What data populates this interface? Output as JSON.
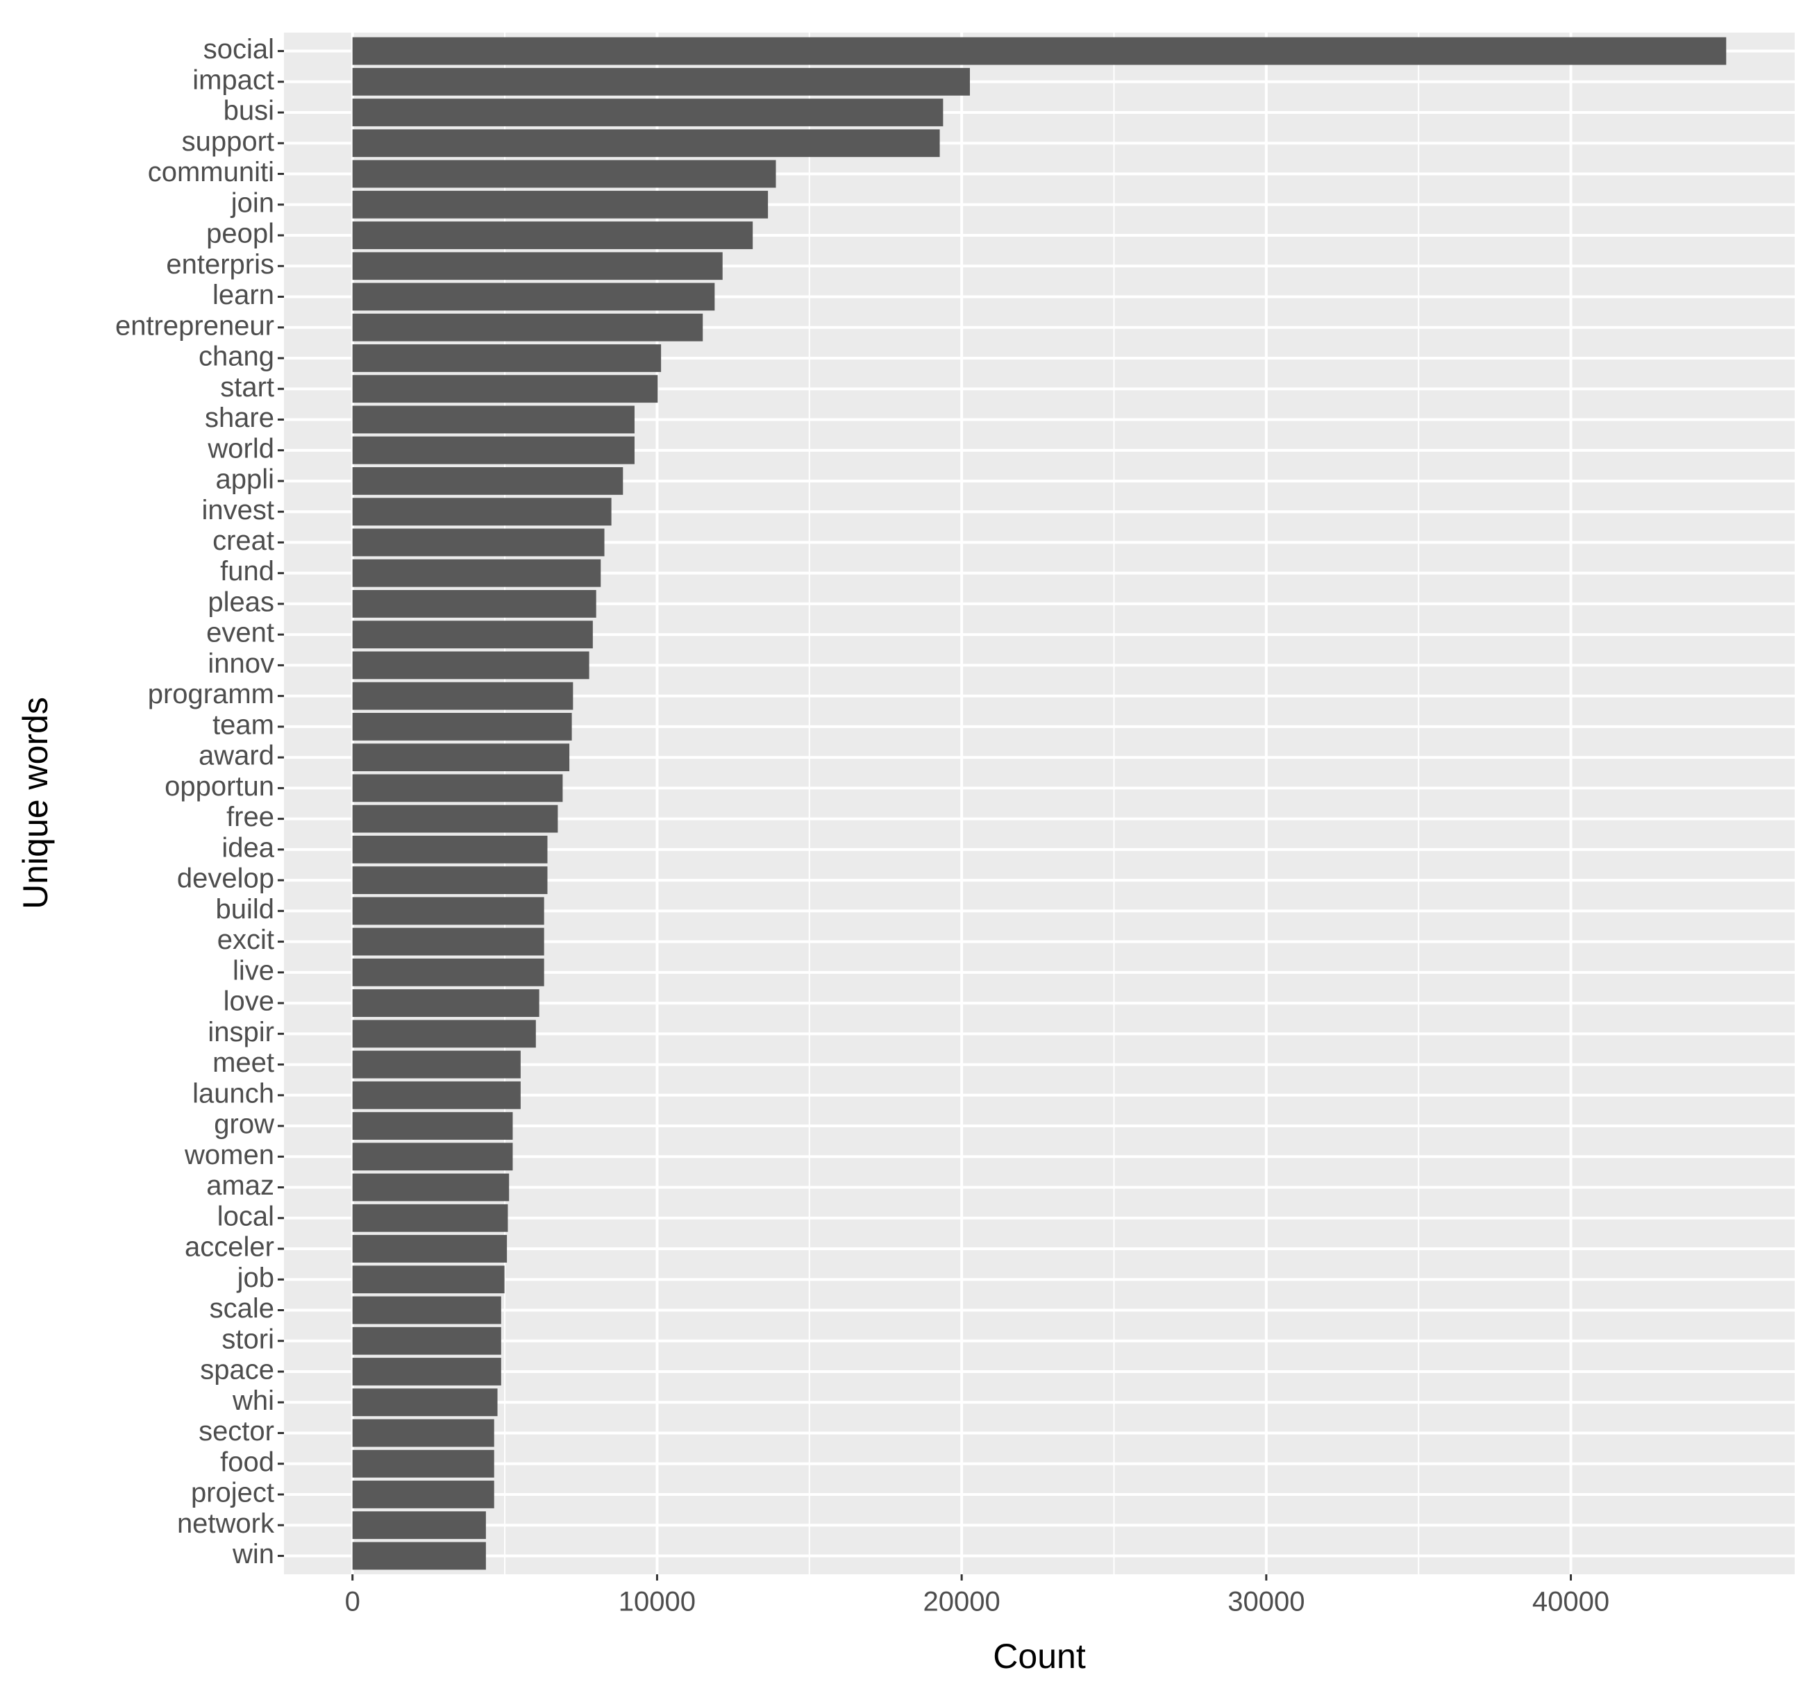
{
  "chart_data": {
    "type": "bar",
    "orientation": "horizontal",
    "x_label": "Count",
    "y_label": "Unique words",
    "categories": [
      "social",
      "impact",
      "busi",
      "support",
      "communiti",
      "join",
      "peopl",
      "enterpris",
      "learn",
      "entrepreneur",
      "chang",
      "start",
      "share",
      "world",
      "appli",
      "invest",
      "creat",
      "fund",
      "pleas",
      "event",
      "innov",
      "programm",
      "team",
      "award",
      "opportun",
      "free",
      "idea",
      "develop",
      "build",
      "excit",
      "live",
      "love",
      "inspir",
      "meet",
      "launch",
      "grow",
      "women",
      "amaz",
      "local",
      "acceler",
      "job",
      "scale",
      "stori",
      "space",
      "whi",
      "sector",
      "food",
      "project",
      "network",
      "win"
    ],
    "values": [
      45100,
      20270,
      19390,
      19280,
      13900,
      13640,
      13140,
      12150,
      11890,
      11500,
      10130,
      10020,
      9260,
      9260,
      8880,
      8500,
      8270,
      8150,
      8000,
      7890,
      7770,
      7240,
      7200,
      7120,
      6900,
      6740,
      6400,
      6400,
      6290,
      6290,
      6290,
      6130,
      6020,
      5520,
      5520,
      5260,
      5260,
      5140,
      5100,
      5070,
      4990,
      4880,
      4880,
      4880,
      4760,
      4650,
      4650,
      4650,
      4380,
      4380
    ],
    "color": "#595959",
    "xlim": [
      -2250,
      47350
    ],
    "xticks": [
      0,
      10000,
      20000,
      30000,
      40000
    ],
    "grid": true
  }
}
